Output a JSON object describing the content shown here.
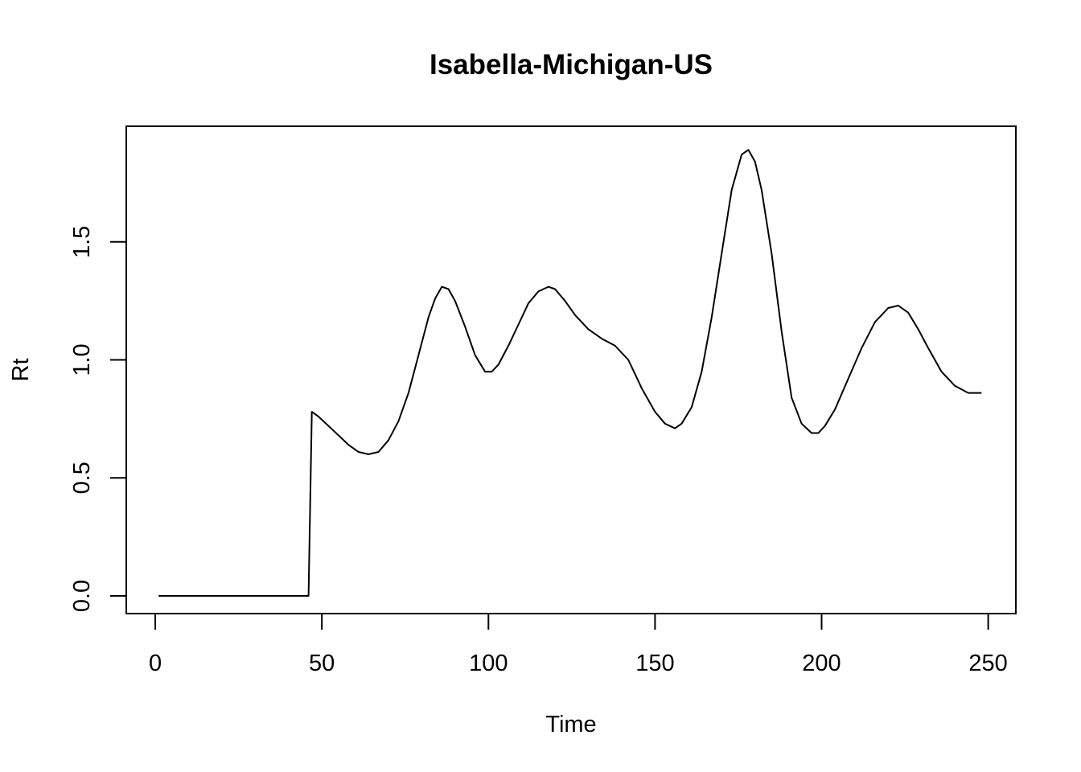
{
  "chart_data": {
    "type": "line",
    "title": "Isabella-Michigan-US",
    "xlabel": "Time",
    "ylabel": "Rt",
    "xlim": [
      -8.7,
      258.3
    ],
    "ylim": [
      -0.075,
      1.99
    ],
    "xticks": [
      0,
      50,
      100,
      150,
      200,
      250
    ],
    "xtick_labels": [
      "0",
      "50",
      "100",
      "150",
      "200",
      "250"
    ],
    "yticks": [
      0.0,
      0.5,
      1.0,
      1.5
    ],
    "ytick_labels": [
      "0.0",
      "0.5",
      "1.0",
      "1.5"
    ],
    "grid": false,
    "legend": "none",
    "line_color": "#000000",
    "series": [
      {
        "x": [
          1,
          10,
          20,
          30,
          40,
          46,
          47,
          49,
          52,
          55,
          58,
          61,
          64,
          67,
          70,
          73,
          76,
          79,
          82,
          84,
          86,
          88,
          90,
          93,
          96,
          99,
          101,
          103,
          106,
          109,
          112,
          115,
          118,
          120,
          123,
          126,
          130,
          134,
          138,
          142,
          146,
          150,
          153,
          156,
          158,
          161,
          164,
          167,
          170,
          173,
          176,
          178,
          180,
          182,
          185,
          188,
          191,
          194,
          197,
          199,
          201,
          204,
          208,
          212,
          216,
          220,
          223,
          226,
          229,
          232,
          236,
          240,
          244,
          246,
          248
        ],
        "y": [
          0,
          0,
          0,
          0,
          0,
          0,
          0.78,
          0.76,
          0.72,
          0.68,
          0.64,
          0.61,
          0.6,
          0.61,
          0.66,
          0.74,
          0.86,
          1.02,
          1.18,
          1.26,
          1.31,
          1.3,
          1.25,
          1.14,
          1.02,
          0.95,
          0.95,
          0.98,
          1.06,
          1.15,
          1.24,
          1.29,
          1.31,
          1.3,
          1.25,
          1.19,
          1.13,
          1.09,
          1.06,
          1.0,
          0.88,
          0.78,
          0.73,
          0.71,
          0.73,
          0.8,
          0.95,
          1.18,
          1.45,
          1.72,
          1.87,
          1.89,
          1.84,
          1.72,
          1.45,
          1.12,
          0.84,
          0.73,
          0.69,
          0.69,
          0.72,
          0.79,
          0.92,
          1.05,
          1.16,
          1.22,
          1.23,
          1.2,
          1.13,
          1.05,
          0.95,
          0.89,
          0.86,
          0.86,
          0.86
        ]
      }
    ]
  }
}
